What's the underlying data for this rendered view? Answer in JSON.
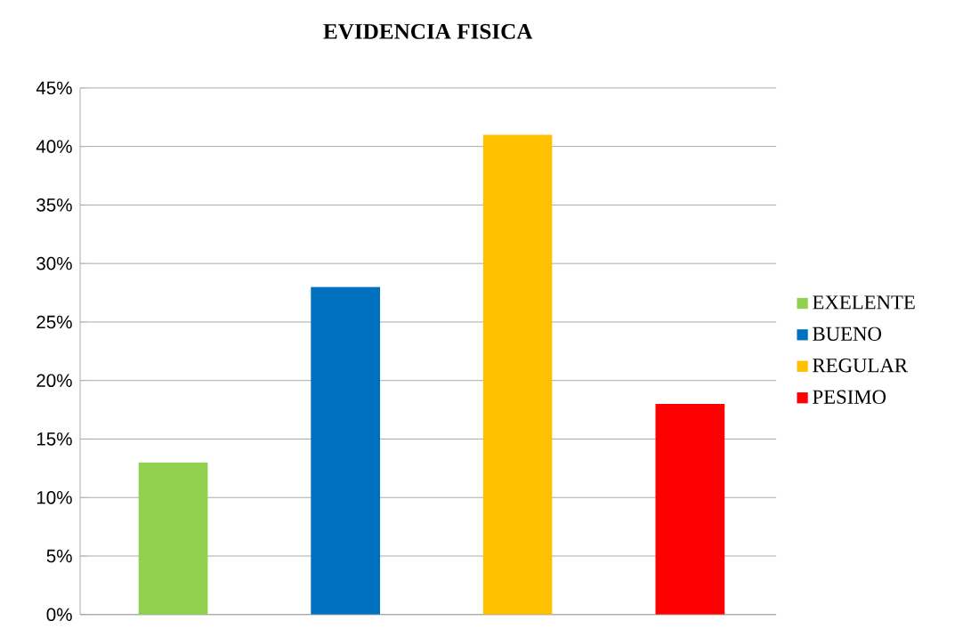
{
  "chart_data": {
    "type": "bar",
    "title": "EVIDENCIA FISICA",
    "categories": [
      null,
      null,
      null,
      null
    ],
    "series": [
      {
        "name": "EXELENTE",
        "color": "#92d050",
        "values": [
          13,
          null,
          null,
          null
        ]
      },
      {
        "name": "BUENO",
        "color": "#0070c0",
        "values": [
          null,
          28,
          null,
          null
        ]
      },
      {
        "name": "REGULAR",
        "color": "#ffc000",
        "values": [
          null,
          null,
          41,
          null
        ]
      },
      {
        "name": "PESIMO",
        "color": "#ff0000",
        "values": [
          null,
          null,
          null,
          18
        ]
      }
    ],
    "ylim": [
      0,
      45
    ],
    "yticks": [
      {
        "value": 0,
        "label": "0%"
      },
      {
        "value": 5,
        "label": "5%"
      },
      {
        "value": 10,
        "label": "10%"
      },
      {
        "value": 15,
        "label": "15%"
      },
      {
        "value": 20,
        "label": "20%"
      },
      {
        "value": 25,
        "label": "25%"
      },
      {
        "value": 30,
        "label": "30%"
      },
      {
        "value": 35,
        "label": "35%"
      },
      {
        "value": 40,
        "label": "40%"
      },
      {
        "value": 45,
        "label": "45%"
      }
    ],
    "grid": "y",
    "legend": "right",
    "tick_labels": "y"
  }
}
